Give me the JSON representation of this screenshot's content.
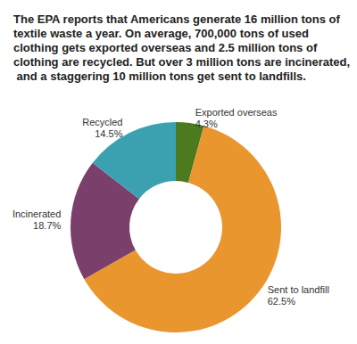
{
  "chart_data": {
    "type": "pie",
    "title": "The EPA reports that Americans generate 16 million tons of textile waste a year. On average, 700,000 tons of used clothing gets exported overseas and 2.5 million tons of clothing are recycled. But over 3 million tons are incinerated, and a staggering 10 million tons get sent to landfills.",
    "categories": [
      "Exported overseas",
      "Sent to landfill",
      "Incinerated",
      "Recycled"
    ],
    "values": [
      4.3,
      62.5,
      18.7,
      14.5
    ],
    "value_labels": [
      "4.3%",
      "62.5%",
      "18.7%",
      "14.5%"
    ],
    "colors": [
      "#4b7a1f",
      "#e9962f",
      "#7b3f6c",
      "#3ba1b1"
    ],
    "data_labels": true
  }
}
